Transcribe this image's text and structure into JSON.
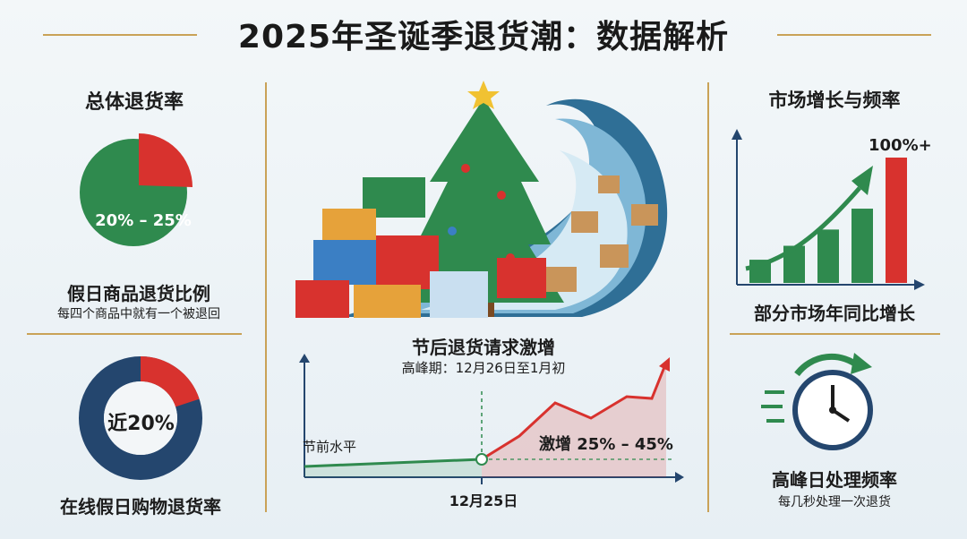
{
  "header": {
    "title": "2025年圣诞季退货潮：数据解析"
  },
  "left_top": {
    "heading": "总体退货率",
    "pie_label": "20% – 25%",
    "caption": "假日商品退货比例",
    "subcaption": "每四个商品中就有一个被退回",
    "return_share": 0.225
  },
  "left_bottom": {
    "donut_label": "近20%",
    "caption": "在线假日购物退货率",
    "return_share": 0.2
  },
  "center_chart": {
    "title": "节后退货请求激增",
    "subtitle": "高峰期：12月26日至1月初",
    "baseline_label": "节前水平",
    "surge_label": "激增 25% – 45%",
    "date_label": "12月25日"
  },
  "right_top": {
    "heading": "市场增长与频率",
    "growth_label": "100%+",
    "caption": "部分市场年同比增长",
    "bars": [
      1,
      1.6,
      2.3,
      3.2,
      5.4
    ]
  },
  "right_bottom": {
    "caption": "高峰日处理频率",
    "subcaption": "每几秒处理一次退货"
  },
  "colors": {
    "green": "#2f8a4e",
    "red": "#d8322e",
    "navy": "#24466e",
    "gold": "#c9a257"
  }
}
